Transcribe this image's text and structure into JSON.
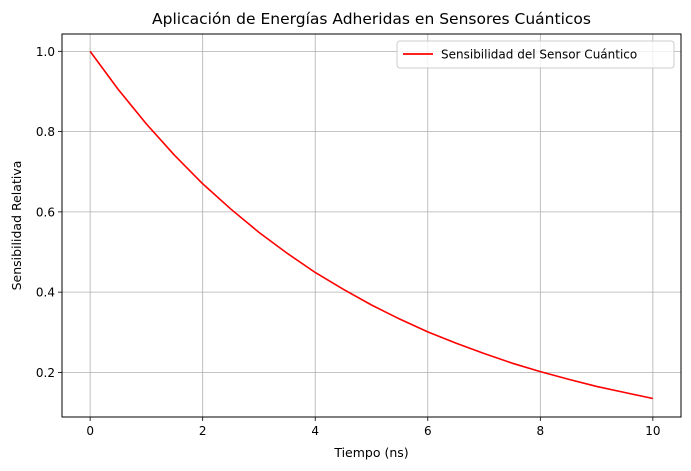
{
  "chart_data": {
    "type": "line",
    "title": "Aplicación de Energías Adheridas en Sensores Cuánticos",
    "xlabel": "Tiempo (ns)",
    "ylabel": "Sensibilidad Relativa",
    "xlim": [
      -0.5,
      10.5
    ],
    "ylim": [
      0.0889,
      1.0432
    ],
    "xticks": [
      0,
      2,
      4,
      6,
      8,
      10
    ],
    "xtick_labels": [
      "0",
      "2",
      "4",
      "6",
      "8",
      "10"
    ],
    "yticks": [
      0.2,
      0.4,
      0.6,
      0.8,
      1.0
    ],
    "ytick_labels": [
      "0.2",
      "0.4",
      "0.6",
      "0.8",
      "1.0"
    ],
    "grid": true,
    "legend_position": "top-right",
    "series": [
      {
        "name": "Sensibilidad del Sensor Cuántico",
        "color": "#ff0000",
        "x": [
          0,
          0.5,
          1,
          1.5,
          2,
          2.5,
          3,
          3.5,
          4,
          4.5,
          5,
          5.5,
          6,
          6.5,
          7,
          7.5,
          8,
          8.5,
          9,
          9.5,
          10
        ],
        "y": [
          1.0,
          0.905,
          0.819,
          0.741,
          0.67,
          0.607,
          0.549,
          0.497,
          0.449,
          0.407,
          0.368,
          0.333,
          0.301,
          0.273,
          0.247,
          0.223,
          0.202,
          0.183,
          0.165,
          0.15,
          0.135
        ]
      }
    ]
  }
}
